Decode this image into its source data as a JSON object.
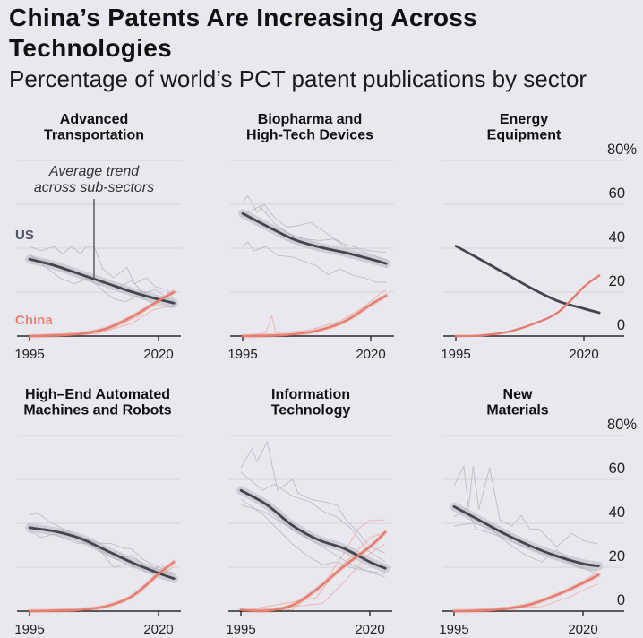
{
  "header": {
    "title": "China’s Patents Are Increasing Across Technologies",
    "subtitle": "Percentage of world’s PCT patent publications by sector"
  },
  "chart_data": {
    "type": "line",
    "title": "China’s Patents Are Increasing Across Technologies",
    "subtitle": "Percentage of world’s PCT patent publications by sector",
    "xlabel": "",
    "ylabel": "",
    "xlim": [
      1995,
      2023
    ],
    "xticks": [
      1995,
      2020
    ],
    "xtick_labels": [
      "1995",
      "2020"
    ],
    "ylim": [
      0,
      80
    ],
    "yticks": [
      0,
      20,
      40,
      60,
      80
    ],
    "ytick_labels": [
      "0",
      "20",
      "40",
      "60",
      "80%"
    ],
    "y_axis_shown_on_panels": [
      2,
      5
    ],
    "grid": true,
    "series_labels": {
      "us": "US",
      "china": "China"
    },
    "colors": {
      "us": "#45454f",
      "china": "#e27d70",
      "us_subsector": "#b3b3bd",
      "china_subsector": "#ee9f93",
      "us_label": "#55556a",
      "china_label": "#e8867a"
    },
    "annotation": {
      "lines": [
        "Average trend",
        "across sub-sectors"
      ],
      "panel": 0,
      "points_to_series": "us",
      "year": 2007.5
    },
    "panels": [
      {
        "name": "Advanced Transportation",
        "title_lines": [
          "Advanced",
          "Transportation"
        ],
        "years": [
          1995,
          2000,
          2005,
          2010,
          2015,
          2020,
          2023
        ],
        "us_average": [
          35,
          32,
          28,
          24,
          20,
          16.7,
          15
        ],
        "china_average": [
          0,
          0.3,
          1,
          3.5,
          9,
          16,
          20
        ],
        "us_band": 2,
        "china_band": 1,
        "us_subsectors": [
          {
            "x": [
              1995,
              1997.3,
              1999.7,
              2001.4,
              2003.1,
              2004.9,
              2006,
              2007.5,
              2009.2,
              2011.3,
              2013.9,
              2015.3,
              2017.7,
              2019.4,
              2021.7,
              2022.9
            ],
            "y": [
              40.8,
              38.8,
              40.8,
              37.4,
              40.8,
              37.4,
              40.8,
              40.8,
              30.6,
              26.5,
              31.3,
              23.8,
              26.5,
              22.4,
              21.1,
              17
            ]
          },
          {
            "x": [
              1995,
              1997.9,
              2000.8,
              2003.7,
              2006.6,
              2009,
              2011.3,
              2013.6,
              2015.9,
              2019.4,
              2022.9
            ],
            "y": [
              37.4,
              32,
              26.5,
              23.8,
              26.5,
              21.1,
              17,
              15.6,
              18.4,
              14.3,
              12.9
            ]
          },
          {
            "x": [
              1995,
              1998.5,
              2002,
              2004.9,
              2007.8,
              2010.1,
              2012.4,
              2014.8,
              2017.1,
              2019.4,
              2022.9
            ],
            "y": [
              36,
              34,
              29.3,
              27.9,
              23.8,
              23.8,
              22.4,
              25.2,
              19.7,
              21.1,
              15.6
            ]
          }
        ],
        "china_subsectors": [
          {
            "x": [
              1995,
              2008,
              2015,
              2019,
              2022.9
            ],
            "y": [
              0,
              1,
              6,
              12,
              14
            ]
          },
          {
            "x": [
              1995,
              2010,
              2016,
              2020,
              2022.9
            ],
            "y": [
              0,
              2.5,
              9,
              16.5,
              21
            ]
          }
        ]
      },
      {
        "name": "Biopharma and High-Tech Devices",
        "title_lines": [
          "Biopharma and",
          "High-Tech Devices"
        ],
        "years": [
          1995,
          2000,
          2005,
          2010,
          2015,
          2020,
          2023
        ],
        "us_average": [
          55.8,
          49.7,
          44,
          40.5,
          38,
          35,
          33
        ],
        "china_average": [
          0,
          0.2,
          0.8,
          2.7,
          6.8,
          14.3,
          18.4
        ],
        "us_band": 2,
        "china_band": 1,
        "us_subsectors": [
          {
            "x": [
              1995,
              1996,
              1997.8,
              1999.2,
              2001.3,
              2003.6,
              2005.9,
              2008.2,
              2010.5,
              2012.9,
              2015.2,
              2017.5,
              2019.8,
              2023
            ],
            "y": [
              61.2,
              63.9,
              56.5,
              59.9,
              53.7,
              49.7,
              50.3,
              51.7,
              48.3,
              44.2,
              41.5,
              40.1,
              38.8,
              38.1
            ]
          },
          {
            "x": [
              1995,
              1996,
              1997.2,
              1999.5,
              2001.8,
              2004.7,
              2007.1,
              2009.4,
              2011.7,
              2014,
              2016.3,
              2018.7,
              2021,
              2023
            ],
            "y": [
              40.8,
              42.9,
              38.8,
              40.8,
              36.7,
              36,
              34,
              32,
              27.9,
              30.6,
              27.9,
              26.5,
              24.5,
              24.5
            ]
          },
          {
            "x": [
              1995,
              1998.4,
              2001.3,
              2004.7,
              2007.1,
              2010,
              2012.9,
              2015.2,
              2017.5,
              2019.8,
              2023
            ],
            "y": [
              55.1,
              59.2,
              51,
              45.6,
              44.2,
              43.5,
              44.2,
              40.1,
              39.5,
              37.4,
              34.7
            ]
          }
        ],
        "china_subsectors": [
          {
            "x": [
              1995,
              1999.5,
              2000.7,
              2001.5,
              2008,
              2014,
              2018.5,
              2022,
              2023
            ],
            "y": [
              0,
              1.4,
              9.1,
              1.4,
              2.7,
              6.8,
              13,
              19.7,
              21
            ]
          }
        ]
      },
      {
        "name": "Energy Equipment",
        "title_lines": [
          "Energy",
          "Equipment"
        ],
        "years": [
          1995,
          2000,
          2005,
          2010,
          2015,
          2020,
          2023
        ],
        "us_average": [
          41,
          34.6,
          28,
          21.5,
          15.9,
          12.5,
          10.6
        ],
        "china_average": [
          0,
          0.3,
          1.8,
          5.4,
          10.9,
          22.4,
          27.6
        ],
        "us_band": 0,
        "china_band": 0,
        "us_subsectors": [],
        "china_subsectors": []
      },
      {
        "name": "High-End Automated Machines and Robots",
        "title_lines": [
          "High–End Automated",
          "Machines and Robots"
        ],
        "years": [
          1995,
          2000,
          2005,
          2010,
          2015,
          2020,
          2023
        ],
        "us_average": [
          38,
          36.3,
          33,
          27.5,
          22,
          17.3,
          14.8
        ],
        "china_average": [
          0,
          0.2,
          0.6,
          2.3,
          7,
          17,
          22.4
        ],
        "us_band": 2,
        "china_band": 1,
        "us_subsectors": [
          {
            "x": [
              1995,
              1996.7,
              1999.1,
              2001.4,
              2003.7,
              2006,
              2008.4,
              2010.7,
              2013,
              2014.8,
              2017.1,
              2020,
              2022.9
            ],
            "y": [
              43.8,
              44.5,
              40.4,
              37.7,
              35,
              32.9,
              30.9,
              30.9,
              28.8,
              28.2,
              23.4,
              20,
              17.3
            ]
          },
          {
            "x": [
              1995,
              1997.3,
              1999.7,
              2002,
              2004.3,
              2006.6,
              2009,
              2011.3,
              2013.6,
              2015.9,
              2018.3,
              2020.6,
              2022.9
            ],
            "y": [
              36.3,
              33.6,
              35,
              32.9,
              30.9,
              30.9,
              26.8,
              20,
              21.4,
              20,
              17.3,
              21.4,
              14.6
            ]
          },
          {
            "x": [
              1995,
              1998.5,
              2002,
              2004.9,
              2008.4,
              2011.9,
              2014.8,
              2017.7,
              2020.6,
              2022.9
            ],
            "y": [
              39,
              36.3,
              36.3,
              32.2,
              28.2,
              23.4,
              25.4,
              20,
              18.6,
              16.6
            ]
          }
        ],
        "china_subsectors": [
          {
            "x": [
              1995,
              2010,
              2016,
              2020,
              2022.9
            ],
            "y": [
              0,
              2,
              8,
              16,
              20
            ]
          }
        ]
      },
      {
        "name": "Information Technology",
        "title_lines": [
          "Information",
          "Technology"
        ],
        "years": [
          1995,
          2000,
          2005,
          2010,
          2015,
          2020,
          2023
        ],
        "us_average": [
          55,
          48.5,
          39,
          32.5,
          28.5,
          22.4,
          19.5
        ],
        "china_average": [
          0.6,
          0.2,
          2.7,
          10.5,
          20.5,
          29.3,
          36
        ],
        "us_band": 2,
        "china_band": 1,
        "us_subsectors": [
          {
            "x": [
              1995,
              1997.2,
              1998.1,
              2000.1,
              2002.1,
              2005,
              2006.1,
              2008.5,
              2011.3,
              2013.6,
              2015.4,
              2017.7,
              2020,
              2022.9
            ],
            "y": [
              65.3,
              74.1,
              68,
              77.1,
              55.1,
              59.9,
              53.7,
              51,
              49.7,
              48.3,
              41.5,
              36.1,
              29.3,
              26.5
            ]
          },
          {
            "x": [
              1995,
              1999.2,
              2001.5,
              2005,
              2008.5,
              2010.8,
              2013.6,
              2016.5,
              2019.4,
              2022.9
            ],
            "y": [
              63.3,
              55.1,
              57.8,
              52.4,
              49.7,
              45.6,
              42.9,
              37.4,
              27.9,
              22.4
            ]
          },
          {
            "x": [
              1995,
              1999.2,
              2002.1,
              2005,
              2007.9,
              2010.8,
              2013.6,
              2016.5,
              2019.4,
              2022.9
            ],
            "y": [
              51,
              44.2,
              37.4,
              30.6,
              25.2,
              21.1,
              22.4,
              19.7,
              18.4,
              15.6
            ]
          },
          {
            "x": [
              1995,
              1999.2,
              2005,
              2010.8,
              2013.6,
              2016.5,
              2019.4,
              2022.9
            ],
            "y": [
              48.3,
              45.6,
              37.4,
              29.3,
              25.2,
              21.1,
              18.4,
              17
            ]
          }
        ],
        "china_subsectors": [
          {
            "x": [
              1995,
              2005,
              2010.8,
              2015.4,
              2017.7,
              2020,
              2022.9
            ],
            "y": [
              0,
              0.7,
              11.6,
              27.9,
              37.4,
              41.5,
              41.5
            ]
          },
          {
            "x": [
              1995,
              2009.6,
              2013.6,
              2016.5,
              2020,
              2022.9
            ],
            "y": [
              0,
              6.1,
              18.4,
              25.2,
              33.3,
              36
            ]
          },
          {
            "x": [
              1995,
              2010.8,
              2015.4,
              2019.4,
              2022.9
            ],
            "y": [
              0,
              3.4,
              14.3,
              25.2,
              30.6
            ]
          }
        ]
      },
      {
        "name": "New Materials",
        "title_lines": [
          "New",
          "Materials"
        ],
        "years": [
          1995,
          2000,
          2005,
          2010,
          2015,
          2020,
          2023
        ],
        "us_average": [
          47.6,
          41.3,
          35,
          29.5,
          25,
          21.6,
          20.6
        ],
        "china_average": [
          0,
          0.2,
          1,
          3.2,
          7.5,
          12.8,
          16.5
        ],
        "us_band": 2,
        "china_band": 1,
        "us_subsectors": [
          {
            "x": [
              1995,
              1996.9,
              1997.8,
              1998.7,
              1999.8,
              2001.9,
              2003.9,
              2006.2,
              2008,
              2009.7,
              2011.5,
              2013.2,
              2014.9,
              2017.8,
              2020.2,
              2022.8
            ],
            "y": [
              57.1,
              66,
              46.9,
              66,
              46.3,
              65.3,
              41.5,
              38.8,
              43.5,
              37.4,
              37.4,
              33.3,
              29.3,
              35.4,
              32,
              30.6
            ]
          },
          {
            "x": [
              1995,
              1997.5,
              1999.2,
              2001.6,
              2004.5,
              2007.4,
              2010.3,
              2013.2,
              2016.1,
              2019,
              2022.8
            ],
            "y": [
              42.9,
              46.9,
              37.4,
              36,
              33.3,
              30.6,
              27.9,
              25.2,
              23.8,
              19.7,
              18.4
            ]
          },
          {
            "x": [
              1995,
              1998.7,
              2002.2,
              2005.6,
              2009.1,
              2012,
              2014.9,
              2018.4,
              2022.8
            ],
            "y": [
              38.8,
              40.1,
              37.4,
              30.6,
              25.2,
              22.4,
              27.9,
              21.1,
              17
            ]
          }
        ],
        "china_subsectors": [
          {
            "x": [
              1995,
              2010,
              2016,
              2020,
              2022.8
            ],
            "y": [
              0,
              2.7,
              8,
              13.6,
              17.7
            ]
          },
          {
            "x": [
              1995,
              2012,
              2018,
              2020,
              2022.8
            ],
            "y": [
              0,
              2,
              7,
              9.6,
              12.3
            ]
          }
        ]
      }
    ]
  }
}
